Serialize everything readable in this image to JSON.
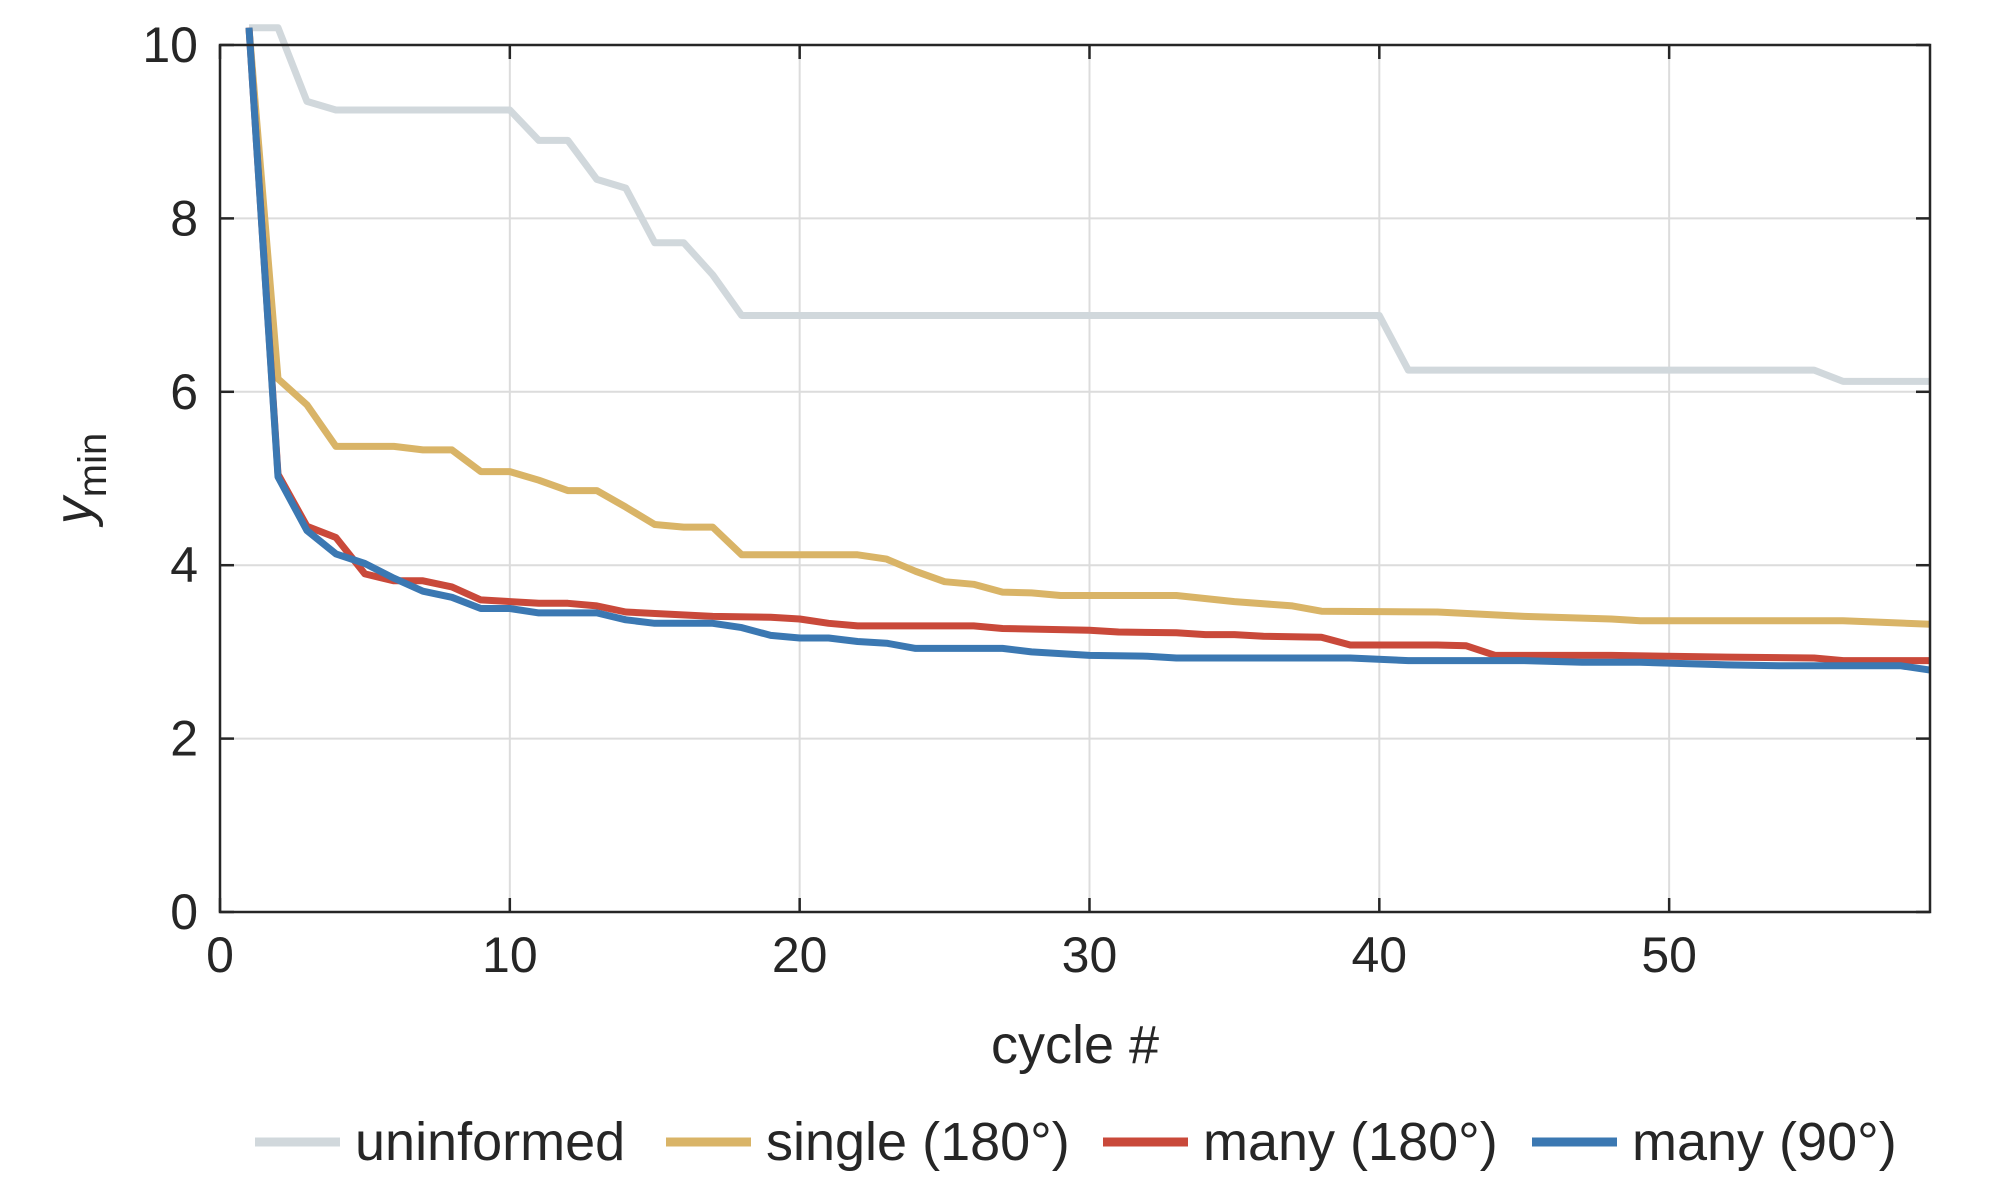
{
  "chart_data": {
    "type": "line",
    "xlabel": "cycle #",
    "ylabel": "y",
    "ylabel_sub": "min",
    "xlim": [
      0,
      59
    ],
    "ylim": [
      0,
      10
    ],
    "x_ticks": [
      0,
      10,
      20,
      30,
      40,
      50
    ],
    "y_ticks": [
      0,
      2,
      4,
      6,
      8,
      10
    ],
    "grid": true,
    "legend_position": "bottom",
    "series": [
      {
        "name": "uninformed",
        "color": "#d1d8dc",
        "x": [
          1,
          2,
          3,
          4,
          10,
          11,
          12,
          13,
          14,
          15,
          16,
          17,
          18,
          40,
          41,
          55,
          56,
          59
        ],
        "y": [
          10.2,
          10.2,
          9.35,
          9.25,
          9.25,
          8.9,
          8.9,
          8.45,
          8.35,
          7.72,
          7.72,
          7.35,
          6.88,
          6.88,
          6.25,
          6.25,
          6.12,
          6.12
        ]
      },
      {
        "name": "single (180°)",
        "color": "#d9b467",
        "x": [
          1,
          2,
          3,
          4,
          6,
          7,
          8,
          9,
          10,
          11,
          12,
          13,
          14,
          15,
          16,
          17,
          18,
          22,
          23,
          24,
          25,
          26,
          27,
          28,
          29,
          33,
          35,
          37,
          38,
          42,
          45,
          48,
          49,
          56,
          59
        ],
        "y": [
          10.2,
          6.15,
          5.85,
          5.37,
          5.37,
          5.33,
          5.33,
          5.08,
          5.08,
          4.98,
          4.86,
          4.86,
          4.67,
          4.47,
          4.44,
          4.44,
          4.12,
          4.12,
          4.07,
          3.93,
          3.81,
          3.78,
          3.69,
          3.68,
          3.65,
          3.65,
          3.58,
          3.53,
          3.47,
          3.46,
          3.41,
          3.38,
          3.36,
          3.36,
          3.32
        ]
      },
      {
        "name": "many (180°)",
        "color": "#c9493a",
        "x": [
          1,
          2,
          3,
          4,
          5,
          6,
          7,
          8,
          9,
          11,
          12,
          13,
          14,
          17,
          19,
          20,
          21,
          22,
          26,
          27,
          30,
          31,
          33,
          34,
          35,
          36,
          38,
          39,
          42,
          43,
          44,
          48,
          52,
          55,
          56,
          59
        ],
        "y": [
          10.2,
          5.05,
          4.45,
          4.32,
          3.9,
          3.82,
          3.82,
          3.75,
          3.6,
          3.56,
          3.56,
          3.53,
          3.46,
          3.41,
          3.4,
          3.38,
          3.33,
          3.3,
          3.3,
          3.27,
          3.25,
          3.23,
          3.22,
          3.2,
          3.2,
          3.18,
          3.17,
          3.08,
          3.08,
          3.07,
          2.96,
          2.96,
          2.94,
          2.93,
          2.9,
          2.9
        ]
      },
      {
        "name": "many (90°)",
        "color": "#3b78b2",
        "x": [
          1,
          2,
          3,
          4,
          5,
          6,
          7,
          8,
          9,
          10,
          11,
          13,
          14,
          15,
          17,
          18,
          19,
          20,
          21,
          22,
          23,
          24,
          27,
          28,
          30,
          32,
          33,
          39,
          41,
          45,
          47,
          49,
          51,
          52,
          54,
          58,
          59
        ],
        "y": [
          10.2,
          5.02,
          4.4,
          4.13,
          4.02,
          3.85,
          3.7,
          3.63,
          3.5,
          3.5,
          3.45,
          3.45,
          3.37,
          3.33,
          3.33,
          3.28,
          3.19,
          3.16,
          3.16,
          3.12,
          3.1,
          3.04,
          3.04,
          3.0,
          2.96,
          2.95,
          2.93,
          2.93,
          2.9,
          2.9,
          2.88,
          2.88,
          2.86,
          2.85,
          2.84,
          2.84,
          2.79
        ]
      }
    ]
  }
}
